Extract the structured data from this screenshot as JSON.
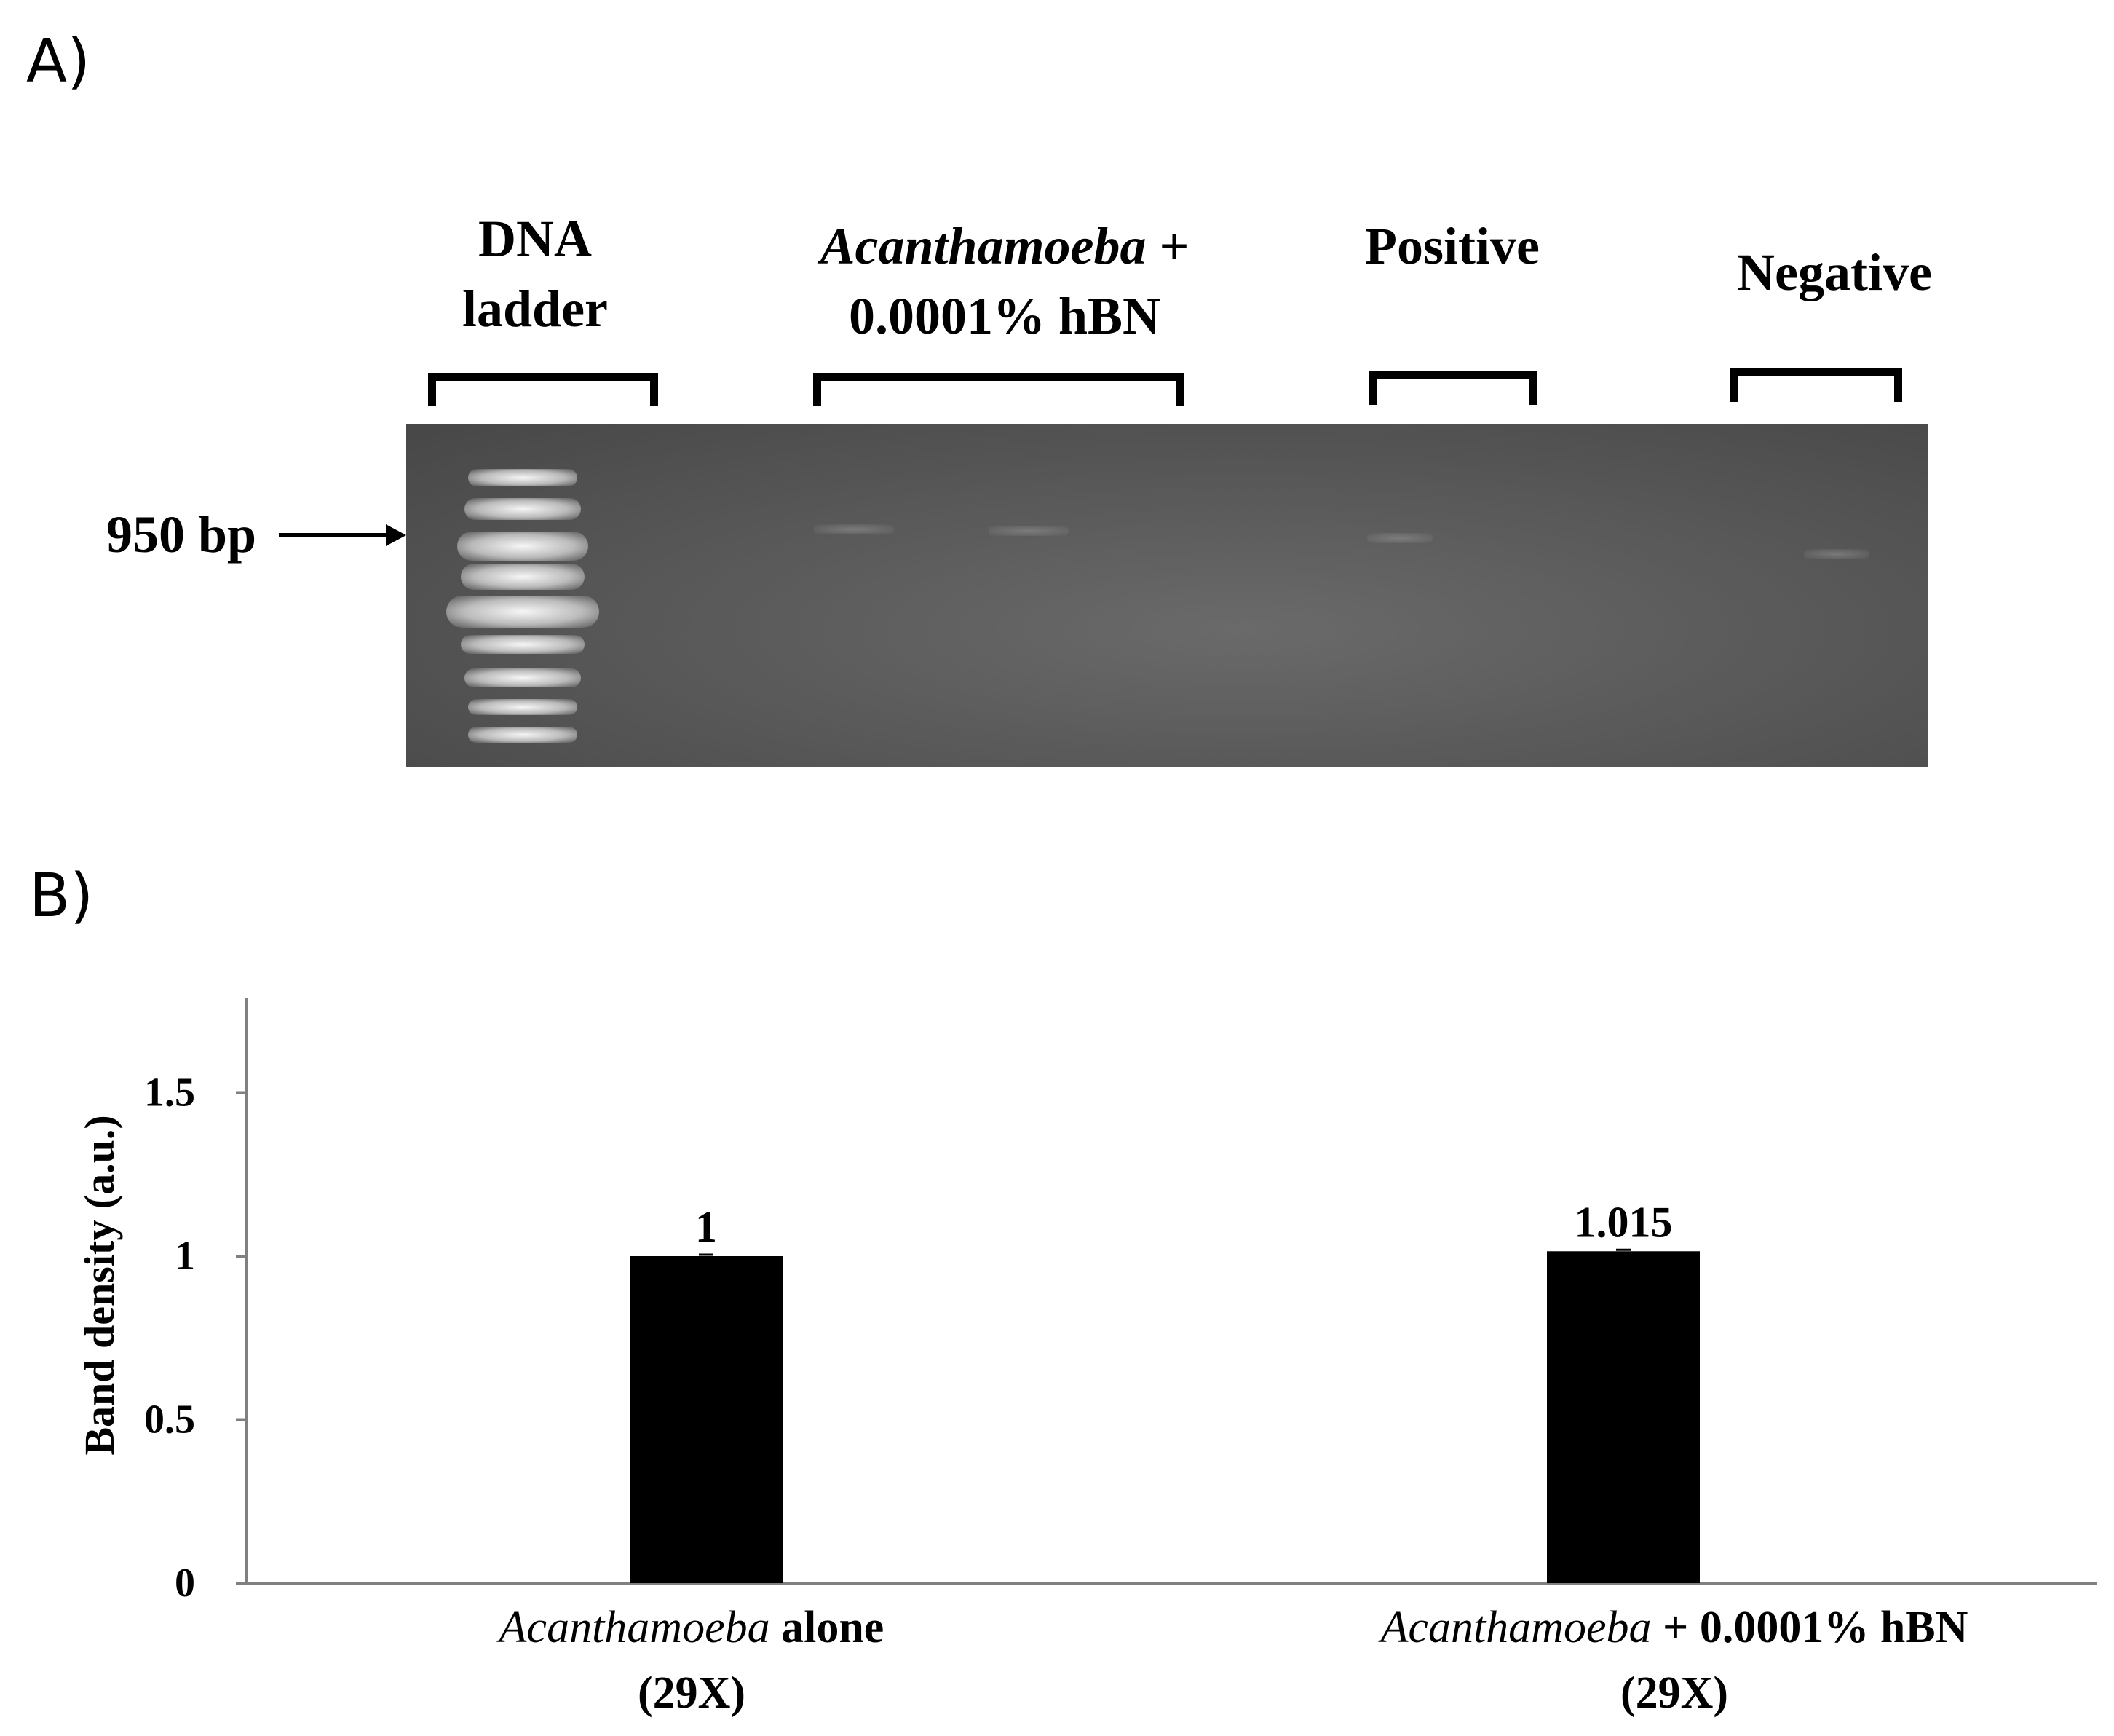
{
  "panel_a": {
    "label": "A)",
    "lanes": [
      {
        "line1": "DNA",
        "line2": "ladder"
      },
      {
        "line1_italic": "Acanthamoeba",
        "line1_rest": " +",
        "line2": "0.0001% hBN"
      },
      {
        "line1": "Positive"
      },
      {
        "line1": "Negative"
      }
    ],
    "marker": "950 bp"
  },
  "panel_b": {
    "label": "B)"
  },
  "chart_data": {
    "type": "bar",
    "categories": [
      {
        "italic": "Acanthamoeba",
        "rest": " alone",
        "line2": "(29X)"
      },
      {
        "italic": "Acanthamoeba",
        "rest": " + 0.0001% hBN",
        "line2": "(29X)"
      }
    ],
    "values": [
      1,
      1.015
    ],
    "data_labels": [
      "1",
      "1.015"
    ],
    "ylabel": "Band density (a.u.)",
    "ylim": [
      0,
      1.8
    ],
    "yticks": [
      "0",
      "0.5",
      "1",
      "1.5"
    ],
    "ytick_values": [
      0,
      0.5,
      1,
      1.5
    ],
    "bar_color": "#000000",
    "grid": false,
    "legend": "none"
  }
}
